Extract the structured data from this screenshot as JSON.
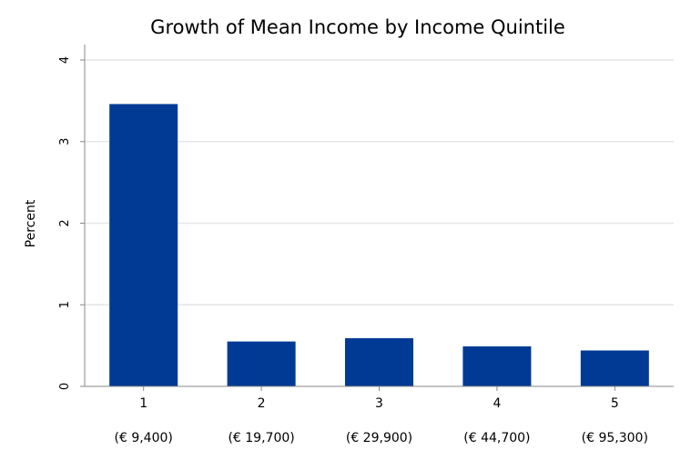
{
  "chart_data": {
    "type": "bar",
    "title": "Growth of Mean Income by Income Quintile",
    "xlabel": "",
    "ylabel": "Percent",
    "categories": [
      "1",
      "2",
      "3",
      "4",
      "5"
    ],
    "sublabels": [
      "(€ 9,400)",
      "(€ 19,700)",
      "(€ 29,900)",
      "(€ 44,700)",
      "(€ 95,300)"
    ],
    "values": [
      3.46,
      0.55,
      0.59,
      0.49,
      0.44
    ],
    "ylim": [
      0,
      4
    ],
    "yticks": [
      "0",
      "1",
      "2",
      "3",
      "4"
    ],
    "grid": true,
    "bar_color": "#003a94",
    "grid_color": "#e6e6e6"
  }
}
